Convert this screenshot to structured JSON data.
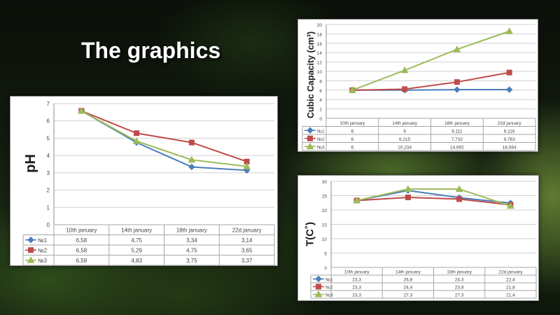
{
  "slide": {
    "title": "The graphics"
  },
  "colors": {
    "s1": "#4a7ebb",
    "s2": "#be4b48",
    "s3": "#9bbb59"
  },
  "chart_data": [
    {
      "type": "line",
      "ylabel": "pH",
      "ylim": [
        0,
        7
      ],
      "yticks": [
        "0",
        "1",
        "2",
        "3",
        "4",
        "5",
        "6",
        "7"
      ],
      "categories": [
        "10th january",
        "14th january",
        "18th january",
        "22d january"
      ],
      "series": [
        {
          "name": "№1",
          "values": [
            6.58,
            4.75,
            3.34,
            3.14
          ],
          "labels": [
            "6,58",
            "4,75",
            "3,34",
            "3,14"
          ]
        },
        {
          "name": "№2",
          "values": [
            6.58,
            5.29,
            4.75,
            3.65
          ],
          "labels": [
            "6,58",
            "5,29",
            "4,75",
            "3,65"
          ]
        },
        {
          "name": "№3",
          "values": [
            6.58,
            4.83,
            3.75,
            3.37
          ],
          "labels": [
            "6,58",
            "4,83",
            "3,75",
            "3,37"
          ]
        }
      ]
    },
    {
      "type": "line",
      "ylabel": "Cubic Capacity (cm³)",
      "ylim": [
        0,
        20
      ],
      "yticks": [
        "0",
        "2",
        "4",
        "6",
        "8",
        "10",
        "12",
        "14",
        "16",
        "18",
        "20"
      ],
      "categories": [
        "10th january",
        "14th january",
        "18th january",
        "22d january"
      ],
      "series": [
        {
          "name": "№1",
          "values": [
            6,
            6,
            6.111,
            6.116
          ],
          "labels": [
            "6",
            "6",
            "6,111",
            "6,116"
          ]
        },
        {
          "name": "№2",
          "values": [
            6,
            6.215,
            7.732,
            9.763
          ],
          "labels": [
            "6",
            "6,215",
            "7,732",
            "9,763"
          ]
        },
        {
          "name": "№3",
          "values": [
            6,
            10.234,
            14.692,
            18.564
          ],
          "labels": [
            "6",
            "10,234",
            "14,692",
            "18,564"
          ]
        }
      ]
    },
    {
      "type": "line",
      "ylabel": "T(C˚)",
      "ylim": [
        0,
        30
      ],
      "yticks": [
        "0",
        "5",
        "10",
        "15",
        "20",
        "25",
        "30"
      ],
      "categories": [
        "10th january",
        "14th january",
        "18th january",
        "22d january"
      ],
      "series": [
        {
          "name": "№1",
          "values": [
            23.3,
            26.8,
            24.3,
            22.4
          ],
          "labels": [
            "23,3",
            "26,8",
            "24,3",
            "22,4"
          ]
        },
        {
          "name": "№2",
          "values": [
            23.3,
            24.4,
            23.8,
            21.8
          ],
          "labels": [
            "23,3",
            "24,4",
            "23,8",
            "21,8"
          ]
        },
        {
          "name": "№3",
          "values": [
            23.3,
            27.3,
            27.3,
            21.4
          ],
          "labels": [
            "23,3",
            "27,3",
            "27,3",
            "21,4"
          ]
        }
      ]
    }
  ]
}
